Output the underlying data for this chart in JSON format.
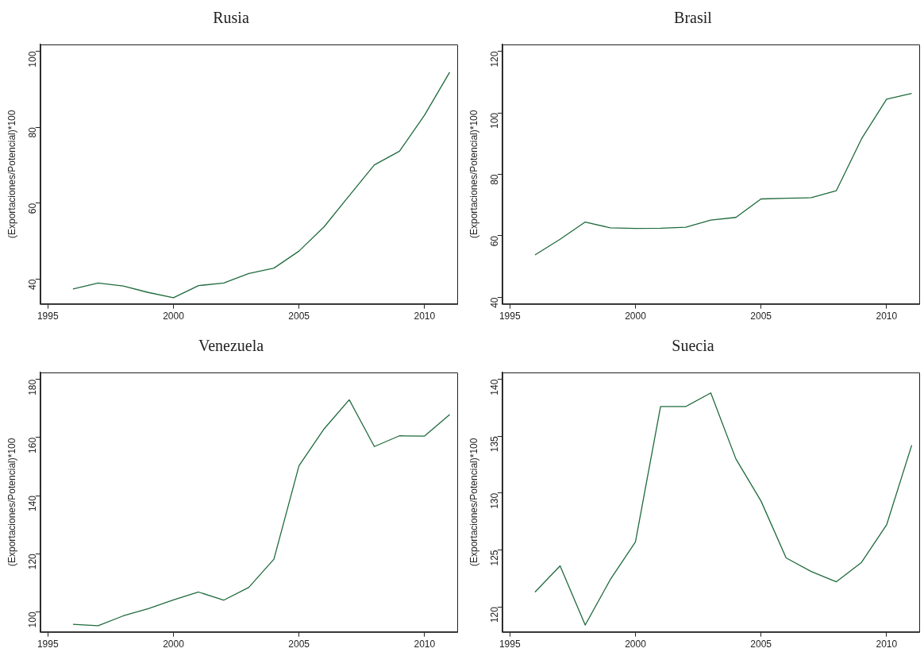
{
  "chart_data": [
    {
      "type": "line",
      "title": "Rusia",
      "ylabel": "(Exportaciones/Potencial)*100",
      "color": "#1f6b3c",
      "grid": false,
      "legend": false,
      "marker": "none",
      "line_style": "solid",
      "xlim": [
        1994.7,
        2011.3
      ],
      "xticks": [
        1995,
        2000,
        2005,
        2010
      ],
      "ylim": [
        33.5,
        101.8
      ],
      "yticks": [
        40,
        60,
        80,
        100
      ],
      "x": [
        1996,
        1997,
        1998,
        1999,
        2000,
        2001,
        2002,
        2003,
        2004,
        2005,
        2006,
        2007,
        2008,
        2009,
        2010,
        2011
      ],
      "values": [
        37.4,
        39.0,
        38.2,
        36.5,
        35.1,
        38.3,
        39.0,
        41.5,
        42.9,
        47.4,
        53.8,
        62.0,
        70.1,
        73.7,
        83.2,
        94.5
      ]
    },
    {
      "type": "line",
      "title": "Brasil",
      "ylabel": "(Exportaciones/Potencial)*100",
      "color": "#1f6b3c",
      "grid": false,
      "legend": false,
      "marker": "none",
      "line_style": "solid",
      "xlim": [
        1994.7,
        2011.3
      ],
      "xticks": [
        1995,
        2000,
        2005,
        2010
      ],
      "ylim": [
        37.9,
        122.2
      ],
      "yticks": [
        40,
        60,
        80,
        100,
        120
      ],
      "x": [
        1996,
        1997,
        1998,
        1999,
        2000,
        2001,
        2002,
        2003,
        2004,
        2005,
        2006,
        2007,
        2008,
        2009,
        2010,
        2011
      ],
      "values": [
        53.8,
        58.9,
        64.5,
        62.6,
        62.4,
        62.5,
        62.8,
        65.1,
        66.0,
        72.0,
        72.2,
        72.4,
        74.7,
        91.5,
        104.4,
        106.3
      ]
    },
    {
      "type": "line",
      "title": "Venezuela",
      "ylabel": "(Exportaciones/Potencial)*100",
      "color": "#1f6b3c",
      "grid": false,
      "legend": false,
      "marker": "none",
      "line_style": "solid",
      "xlim": [
        1994.7,
        2011.3
      ],
      "xticks": [
        1995,
        2000,
        2005,
        2010
      ],
      "ylim": [
        93.1,
        182.4
      ],
      "yticks": [
        100,
        120,
        140,
        160,
        180
      ],
      "x": [
        1996,
        1997,
        1998,
        1999,
        2000,
        2001,
        2002,
        2003,
        2004,
        2005,
        2006,
        2007,
        2008,
        2009,
        2010,
        2011
      ],
      "values": [
        95.7,
        95.2,
        98.6,
        101.1,
        104.1,
        106.8,
        104.0,
        108.4,
        118.1,
        150.3,
        163.0,
        173.0,
        156.9,
        160.6,
        160.5,
        167.9
      ]
    },
    {
      "type": "line",
      "title": "Suecia",
      "ylabel": "(Exportaciones/Potencial)*100",
      "color": "#1f6b3c",
      "grid": false,
      "legend": false,
      "marker": "none",
      "line_style": "solid",
      "xlim": [
        1994.7,
        2011.3
      ],
      "xticks": [
        1995,
        2000,
        2005,
        2010
      ],
      "ylim": [
        117.8,
        140.6
      ],
      "yticks": [
        120,
        125,
        130,
        135,
        140
      ],
      "x": [
        1996,
        1997,
        1998,
        1999,
        2000,
        2001,
        2002,
        2003,
        2004,
        2005,
        2006,
        2007,
        2008,
        2009,
        2010,
        2011
      ],
      "values": [
        121.3,
        123.6,
        118.4,
        122.4,
        125.7,
        137.6,
        137.6,
        138.8,
        133.0,
        129.3,
        124.3,
        123.1,
        122.2,
        123.9,
        127.2,
        134.2
      ]
    }
  ]
}
